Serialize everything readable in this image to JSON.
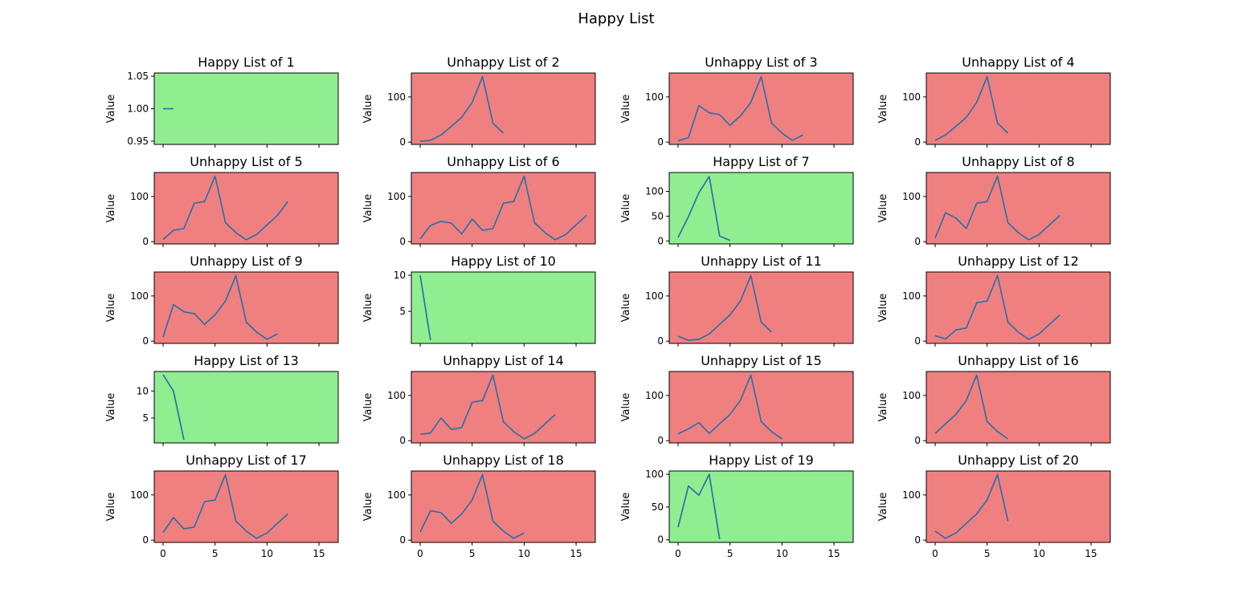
{
  "figure": {
    "suptitle": "Happy List"
  },
  "colors": {
    "happy_bg": "#90ee90",
    "unhappy_bg": "#f08080",
    "line": "#2f6fa8"
  },
  "chart_data": [
    {
      "type": "line",
      "title": "Happy List of 1",
      "status": "happy",
      "ylabel": "Value",
      "x": [
        0,
        1
      ],
      "y": [
        1,
        1
      ],
      "xlim": [
        -0.85,
        16.85
      ],
      "ylim": [
        0.945,
        1.055
      ],
      "yticks": [
        0.95,
        1.0,
        1.05
      ],
      "ytick_labels": [
        "0.95",
        "1.00",
        "1.05"
      ]
    },
    {
      "type": "line",
      "title": "Unhappy List of 2",
      "status": "unhappy",
      "ylabel": "Value",
      "x": [
        0,
        1,
        2,
        3,
        4,
        5,
        6,
        7,
        8
      ],
      "y": [
        2,
        4,
        16,
        35,
        55,
        88,
        145,
        42,
        20
      ],
      "xlim": [
        -0.85,
        16.85
      ],
      "ylim": [
        -5,
        153
      ],
      "yticks": [
        0,
        100
      ],
      "ytick_labels": [
        "0",
        "100"
      ]
    },
    {
      "type": "line",
      "title": "Unhappy List of 3",
      "status": "unhappy",
      "ylabel": "Value",
      "x": [
        0,
        1,
        2,
        3,
        4,
        5,
        6,
        7,
        8,
        9,
        10,
        11,
        12
      ],
      "y": [
        3,
        10,
        81,
        65,
        61,
        37,
        58,
        88,
        145,
        42,
        20,
        4,
        16
      ],
      "xlim": [
        -0.85,
        16.85
      ],
      "ylim": [
        -5,
        153
      ],
      "yticks": [
        0,
        100
      ],
      "ytick_labels": [
        "0",
        "100"
      ]
    },
    {
      "type": "line",
      "title": "Unhappy List of 4",
      "status": "unhappy",
      "ylabel": "Value",
      "x": [
        0,
        1,
        2,
        3,
        4,
        5,
        6,
        7
      ],
      "y": [
        4,
        16,
        35,
        55,
        88,
        145,
        42,
        20
      ],
      "xlim": [
        -0.85,
        16.85
      ],
      "ylim": [
        -5,
        153
      ],
      "yticks": [
        0,
        100
      ],
      "ytick_labels": [
        "0",
        "100"
      ]
    },
    {
      "type": "line",
      "title": "Unhappy List of 5",
      "status": "unhappy",
      "ylabel": "Value",
      "x": [
        0,
        1,
        2,
        3,
        4,
        5,
        6,
        7,
        8,
        9,
        10,
        11,
        12
      ],
      "y": [
        5,
        25,
        29,
        85,
        89,
        145,
        42,
        20,
        4,
        16,
        37,
        58,
        89
      ],
      "xlim": [
        -0.85,
        16.85
      ],
      "ylim": [
        -5,
        153
      ],
      "yticks": [
        0,
        100
      ],
      "ytick_labels": [
        "0",
        "100"
      ]
    },
    {
      "type": "line",
      "title": "Unhappy List of 6",
      "status": "unhappy",
      "ylabel": "Value",
      "x": [
        0,
        1,
        2,
        3,
        4,
        5,
        6,
        7,
        8,
        9,
        10,
        11,
        12,
        13,
        14,
        15,
        16
      ],
      "y": [
        6,
        36,
        45,
        41,
        17,
        50,
        25,
        29,
        85,
        89,
        145,
        42,
        20,
        4,
        16,
        37,
        58
      ],
      "xlim": [
        -0.85,
        16.85
      ],
      "ylim": [
        -5,
        153
      ],
      "yticks": [
        0,
        100
      ],
      "ytick_labels": [
        "0",
        "100"
      ]
    },
    {
      "type": "line",
      "title": "Happy List of 7",
      "status": "happy",
      "ylabel": "Value",
      "x": [
        0,
        1,
        2,
        3,
        4,
        5
      ],
      "y": [
        7,
        49,
        97,
        130,
        10,
        1
      ],
      "xlim": [
        -0.85,
        16.85
      ],
      "ylim": [
        -6,
        138
      ],
      "yticks": [
        0,
        50,
        100
      ],
      "ytick_labels": [
        "0",
        "50",
        "100"
      ]
    },
    {
      "type": "line",
      "title": "Unhappy List of 8",
      "status": "unhappy",
      "ylabel": "Value",
      "x": [
        0,
        1,
        2,
        3,
        4,
        5,
        6,
        7,
        8,
        9,
        10,
        11,
        12
      ],
      "y": [
        8,
        64,
        52,
        29,
        85,
        89,
        145,
        42,
        20,
        4,
        16,
        37,
        58
      ],
      "xlim": [
        -0.85,
        16.85
      ],
      "ylim": [
        -5,
        153
      ],
      "yticks": [
        0,
        100
      ],
      "ytick_labels": [
        "0",
        "100"
      ]
    },
    {
      "type": "line",
      "title": "Unhappy List of 9",
      "status": "unhappy",
      "ylabel": "Value",
      "x": [
        0,
        1,
        2,
        3,
        4,
        5,
        6,
        7,
        8,
        9,
        10,
        11
      ],
      "y": [
        9,
        81,
        65,
        61,
        37,
        58,
        89,
        145,
        42,
        20,
        4,
        16
      ],
      "xlim": [
        -0.85,
        16.85
      ],
      "ylim": [
        -5,
        153
      ],
      "yticks": [
        0,
        100
      ],
      "ytick_labels": [
        "0",
        "100"
      ]
    },
    {
      "type": "line",
      "title": "Happy List of 10",
      "status": "happy",
      "ylabel": "Value",
      "x": [
        0,
        1
      ],
      "y": [
        10,
        1
      ],
      "xlim": [
        -0.85,
        16.85
      ],
      "ylim": [
        0.55,
        10.45
      ],
      "yticks": [
        5,
        10
      ],
      "ytick_labels": [
        "5",
        "10"
      ]
    },
    {
      "type": "line",
      "title": "Unhappy List of 11",
      "status": "unhappy",
      "ylabel": "Value",
      "x": [
        0,
        1,
        2,
        3,
        4,
        5,
        6,
        7,
        8,
        9
      ],
      "y": [
        11,
        2,
        4,
        16,
        37,
        58,
        89,
        145,
        42,
        20
      ],
      "xlim": [
        -0.85,
        16.85
      ],
      "ylim": [
        -5,
        153
      ],
      "yticks": [
        0,
        100
      ],
      "ytick_labels": [
        "0",
        "100"
      ]
    },
    {
      "type": "line",
      "title": "Unhappy List of 12",
      "status": "unhappy",
      "ylabel": "Value",
      "x": [
        0,
        1,
        2,
        3,
        4,
        5,
        6,
        7,
        8,
        9,
        10,
        11,
        12
      ],
      "y": [
        12,
        5,
        25,
        29,
        85,
        89,
        145,
        42,
        20,
        4,
        16,
        37,
        58
      ],
      "xlim": [
        -0.85,
        16.85
      ],
      "ylim": [
        -5,
        153
      ],
      "yticks": [
        0,
        100
      ],
      "ytick_labels": [
        "0",
        "100"
      ]
    },
    {
      "type": "line",
      "title": "Happy List of 13",
      "status": "happy",
      "ylabel": "Value",
      "x": [
        0,
        1,
        2
      ],
      "y": [
        13,
        10,
        1
      ],
      "xlim": [
        -0.85,
        16.85
      ],
      "ylim": [
        0.4,
        13.6
      ],
      "yticks": [
        5,
        10
      ],
      "ytick_labels": [
        "5",
        "10"
      ]
    },
    {
      "type": "line",
      "title": "Unhappy List of 14",
      "status": "unhappy",
      "ylabel": "Value",
      "x": [
        0,
        1,
        2,
        3,
        4,
        5,
        6,
        7,
        8,
        9,
        10,
        11,
        12,
        13
      ],
      "y": [
        14,
        17,
        50,
        25,
        29,
        85,
        89,
        145,
        42,
        20,
        4,
        16,
        37,
        58
      ],
      "xlim": [
        -0.85,
        16.85
      ],
      "ylim": [
        -5,
        153
      ],
      "yticks": [
        0,
        100
      ],
      "ytick_labels": [
        "0",
        "100"
      ]
    },
    {
      "type": "line",
      "title": "Unhappy List of 15",
      "status": "unhappy",
      "ylabel": "Value",
      "x": [
        0,
        1,
        2,
        3,
        4,
        5,
        6,
        7,
        8,
        9,
        10
      ],
      "y": [
        15,
        26,
        40,
        16,
        37,
        58,
        89,
        145,
        42,
        20,
        4
      ],
      "xlim": [
        -0.85,
        16.85
      ],
      "ylim": [
        -5,
        153
      ],
      "yticks": [
        0,
        100
      ],
      "ytick_labels": [
        "0",
        "100"
      ]
    },
    {
      "type": "line",
      "title": "Unhappy List of 16",
      "status": "unhappy",
      "ylabel": "Value",
      "x": [
        0,
        1,
        2,
        3,
        4,
        5,
        6,
        7
      ],
      "y": [
        16,
        37,
        58,
        89,
        145,
        42,
        20,
        4
      ],
      "xlim": [
        -0.85,
        16.85
      ],
      "ylim": [
        -5,
        153
      ],
      "yticks": [
        0,
        100
      ],
      "ytick_labels": [
        "0",
        "100"
      ]
    },
    {
      "type": "line",
      "title": "Unhappy List of 17",
      "status": "unhappy",
      "ylabel": "Value",
      "x": [
        0,
        1,
        2,
        3,
        4,
        5,
        6,
        7,
        8,
        9,
        10,
        11,
        12
      ],
      "y": [
        17,
        50,
        25,
        29,
        85,
        89,
        145,
        42,
        20,
        4,
        16,
        37,
        58
      ],
      "xlim": [
        -0.85,
        16.85
      ],
      "ylim": [
        -5,
        153
      ],
      "yticks": [
        0,
        100
      ],
      "ytick_labels": [
        "0",
        "100"
      ]
    },
    {
      "type": "line",
      "title": "Unhappy List of 18",
      "status": "unhappy",
      "ylabel": "Value",
      "x": [
        0,
        1,
        2,
        3,
        4,
        5,
        6,
        7,
        8,
        9,
        10
      ],
      "y": [
        18,
        65,
        61,
        37,
        58,
        89,
        145,
        42,
        20,
        4,
        16
      ],
      "xlim": [
        -0.85,
        16.85
      ],
      "ylim": [
        -5,
        153
      ],
      "yticks": [
        0,
        100
      ],
      "ytick_labels": [
        "0",
        "100"
      ]
    },
    {
      "type": "line",
      "title": "Happy List of 19",
      "status": "happy",
      "ylabel": "Value",
      "x": [
        0,
        1,
        2,
        3,
        4
      ],
      "y": [
        19,
        82,
        68,
        100,
        1
      ],
      "xlim": [
        -0.85,
        16.85
      ],
      "ylim": [
        -4,
        105
      ],
      "yticks": [
        0,
        50,
        100
      ],
      "ytick_labels": [
        "0",
        "50",
        "100"
      ]
    },
    {
      "type": "line",
      "title": "Unhappy List of 20",
      "status": "unhappy",
      "ylabel": "Value",
      "x": [
        0,
        1,
        2,
        3,
        4,
        5,
        6,
        7
      ],
      "y": [
        20,
        4,
        16,
        37,
        58,
        89,
        145,
        42
      ],
      "xlim": [
        -0.85,
        16.85
      ],
      "ylim": [
        -5,
        153
      ],
      "yticks": [
        0,
        100
      ],
      "ytick_labels": [
        "0",
        "100"
      ]
    }
  ],
  "xaxis": {
    "ticks": [
      0,
      5,
      10,
      15
    ],
    "tick_labels": [
      "0",
      "5",
      "10",
      "15"
    ],
    "labeled_row": 4
  }
}
